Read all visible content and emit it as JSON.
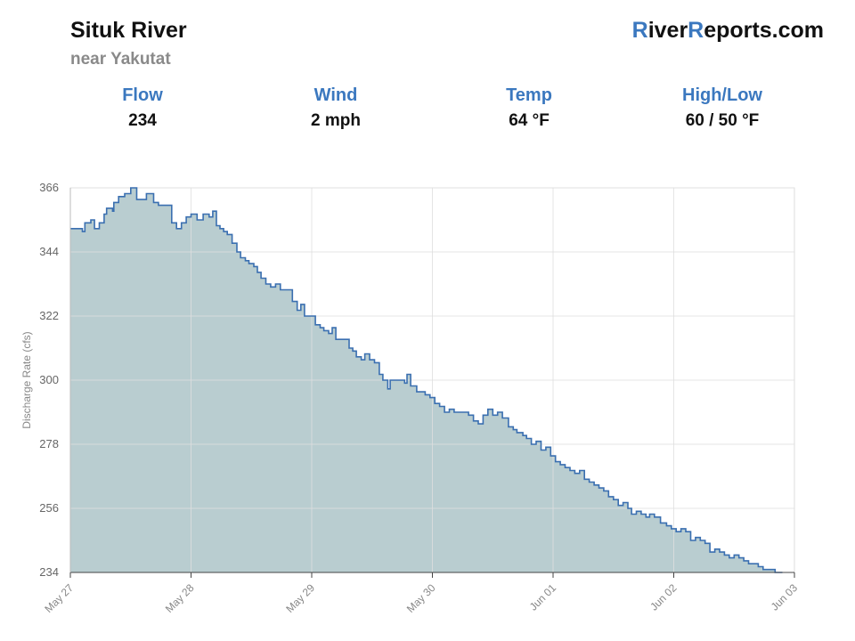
{
  "header": {
    "river_name": "Situk River",
    "location": "near Yakutat",
    "brand_r1": "R",
    "brand_mid": "iver",
    "brand_r2": "R",
    "brand_end": "eports.com"
  },
  "stats": [
    {
      "label": "Flow",
      "value": "234"
    },
    {
      "label": "Wind",
      "value": "2 mph"
    },
    {
      "label": "Temp",
      "value": "64 °F"
    },
    {
      "label": "High/Low",
      "value": "60 / 50 °F"
    }
  ],
  "colors": {
    "accent": "#3b78bf",
    "line": "#3a6fb0",
    "fill": "#b9cdd0",
    "grid": "#dedede"
  },
  "chart_data": {
    "type": "area",
    "step": true,
    "title": "",
    "xlabel": "",
    "ylabel": "Discharge Rate (cfs)",
    "ylim": [
      234,
      366
    ],
    "yticks": [
      234,
      256,
      278,
      300,
      322,
      344,
      366
    ],
    "xlim": [
      0,
      6
    ],
    "xticks": [
      0,
      1,
      2,
      3,
      4,
      5,
      6
    ],
    "xtick_labels": [
      "May 27",
      "May 28",
      "May 29",
      "May 30",
      "Jun 01",
      "Jun 02",
      "Jun 03"
    ],
    "grid": true,
    "series": [
      {
        "values": [
          [
            0.0,
            352
          ],
          [
            0.1,
            351
          ],
          [
            0.12,
            354
          ],
          [
            0.17,
            355
          ],
          [
            0.2,
            352
          ],
          [
            0.24,
            354
          ],
          [
            0.28,
            357
          ],
          [
            0.3,
            359
          ],
          [
            0.35,
            358
          ],
          [
            0.36,
            361
          ],
          [
            0.4,
            363
          ],
          [
            0.45,
            364
          ],
          [
            0.5,
            366
          ],
          [
            0.55,
            362
          ],
          [
            0.6,
            362
          ],
          [
            0.63,
            364
          ],
          [
            0.68,
            364
          ],
          [
            0.69,
            361
          ],
          [
            0.73,
            360
          ],
          [
            0.81,
            360
          ],
          [
            0.84,
            354
          ],
          [
            0.88,
            352
          ],
          [
            0.92,
            354
          ],
          [
            0.96,
            356
          ],
          [
            1.0,
            357
          ],
          [
            1.05,
            355
          ],
          [
            1.09,
            355
          ],
          [
            1.1,
            357
          ],
          [
            1.15,
            356
          ],
          [
            1.18,
            358
          ],
          [
            1.21,
            353
          ],
          [
            1.24,
            352
          ],
          [
            1.27,
            351
          ],
          [
            1.3,
            350
          ],
          [
            1.34,
            347
          ],
          [
            1.38,
            344
          ],
          [
            1.41,
            342
          ],
          [
            1.45,
            341
          ],
          [
            1.48,
            340
          ],
          [
            1.52,
            339
          ],
          [
            1.55,
            337
          ],
          [
            1.58,
            335
          ],
          [
            1.62,
            333
          ],
          [
            1.66,
            332
          ],
          [
            1.7,
            333
          ],
          [
            1.74,
            331
          ],
          [
            1.8,
            331
          ],
          [
            1.84,
            327
          ],
          [
            1.88,
            324
          ],
          [
            1.91,
            326
          ],
          [
            1.94,
            322
          ],
          [
            2.0,
            322
          ],
          [
            2.03,
            319
          ],
          [
            2.07,
            318
          ],
          [
            2.1,
            317
          ],
          [
            2.14,
            316
          ],
          [
            2.17,
            318
          ],
          [
            2.2,
            314
          ],
          [
            2.28,
            314
          ],
          [
            2.31,
            311
          ],
          [
            2.34,
            310
          ],
          [
            2.37,
            308
          ],
          [
            2.41,
            307
          ],
          [
            2.44,
            309
          ],
          [
            2.48,
            307
          ],
          [
            2.52,
            306
          ],
          [
            2.56,
            302
          ],
          [
            2.59,
            300
          ],
          [
            2.63,
            297
          ],
          [
            2.65,
            300
          ],
          [
            2.73,
            300
          ],
          [
            2.77,
            299
          ],
          [
            2.79,
            302
          ],
          [
            2.82,
            298
          ],
          [
            2.87,
            296
          ],
          [
            2.9,
            296
          ],
          [
            2.94,
            295
          ],
          [
            2.98,
            294
          ],
          [
            3.02,
            292
          ],
          [
            3.06,
            291
          ],
          [
            3.1,
            289
          ],
          [
            3.14,
            290
          ],
          [
            3.18,
            289
          ],
          [
            3.26,
            289
          ],
          [
            3.3,
            288
          ],
          [
            3.34,
            286
          ],
          [
            3.38,
            285
          ],
          [
            3.42,
            288
          ],
          [
            3.46,
            290
          ],
          [
            3.5,
            288
          ],
          [
            3.54,
            289
          ],
          [
            3.58,
            287
          ],
          [
            3.63,
            284
          ],
          [
            3.67,
            283
          ],
          [
            3.7,
            282
          ],
          [
            3.75,
            281
          ],
          [
            3.78,
            280
          ],
          [
            3.82,
            278
          ],
          [
            3.86,
            279
          ],
          [
            3.9,
            276
          ],
          [
            3.94,
            277
          ],
          [
            3.98,
            274
          ],
          [
            4.02,
            272
          ],
          [
            4.06,
            271
          ],
          [
            4.1,
            270
          ],
          [
            4.14,
            269
          ],
          [
            4.18,
            268
          ],
          [
            4.22,
            269
          ],
          [
            4.26,
            266
          ],
          [
            4.3,
            265
          ],
          [
            4.34,
            264
          ],
          [
            4.38,
            263
          ],
          [
            4.42,
            262
          ],
          [
            4.46,
            260
          ],
          [
            4.5,
            259
          ],
          [
            4.54,
            257
          ],
          [
            4.58,
            258
          ],
          [
            4.62,
            256
          ],
          [
            4.65,
            254
          ],
          [
            4.69,
            255
          ],
          [
            4.73,
            254
          ],
          [
            4.77,
            253
          ],
          [
            4.8,
            254
          ],
          [
            4.84,
            253
          ],
          [
            4.89,
            251
          ],
          [
            4.94,
            250
          ],
          [
            4.98,
            249
          ],
          [
            5.02,
            248
          ],
          [
            5.06,
            249
          ],
          [
            5.1,
            248
          ],
          [
            5.14,
            245
          ],
          [
            5.18,
            246
          ],
          [
            5.22,
            245
          ],
          [
            5.26,
            244
          ],
          [
            5.3,
            241
          ],
          [
            5.34,
            242
          ],
          [
            5.38,
            241
          ],
          [
            5.42,
            240
          ],
          [
            5.46,
            239
          ],
          [
            5.5,
            240
          ],
          [
            5.54,
            239
          ],
          [
            5.58,
            238
          ],
          [
            5.62,
            237
          ],
          [
            5.66,
            237
          ],
          [
            5.7,
            236
          ],
          [
            5.74,
            235
          ],
          [
            5.78,
            235
          ],
          [
            5.84,
            234
          ],
          [
            5.9,
            234
          ]
        ]
      }
    ]
  }
}
